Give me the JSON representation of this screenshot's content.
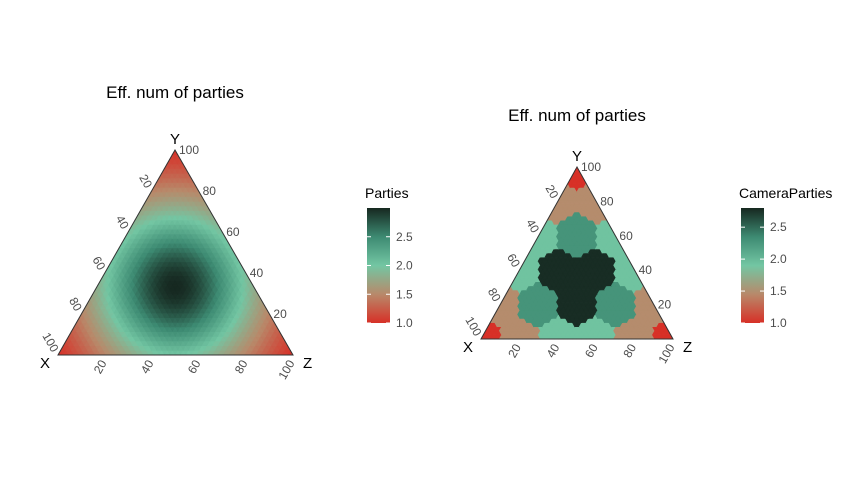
{
  "palette": [
    "#d73027",
    "#b8896a",
    "#73c6a3",
    "#3d8a72",
    "#162820"
  ],
  "chart_data": [
    {
      "type": "ternary-heatmap",
      "title": "Eff. num of parties",
      "vertices": {
        "left": "X",
        "top": "Y",
        "right": "Z"
      },
      "ticks": [
        "20",
        "40",
        "60",
        "80",
        "100"
      ],
      "fill": "continuous",
      "legend": {
        "title": "Parties",
        "ticks": [
          "1.0",
          "1.5",
          "2.0",
          "2.5"
        ],
        "range": [
          1.0,
          3.0
        ],
        "position": "right"
      }
    },
    {
      "type": "ternary-heatmap",
      "title": "Eff. num of parties",
      "vertices": {
        "left": "X",
        "top": "Y",
        "right": "Z"
      },
      "ticks": [
        "20",
        "40",
        "60",
        "80",
        "100"
      ],
      "fill": "binned",
      "legend": {
        "title": "CameraParties",
        "ticks": [
          "1.0",
          "1.5",
          "2.0",
          "2.5"
        ],
        "range": [
          1.0,
          2.8
        ],
        "position": "right"
      }
    }
  ]
}
